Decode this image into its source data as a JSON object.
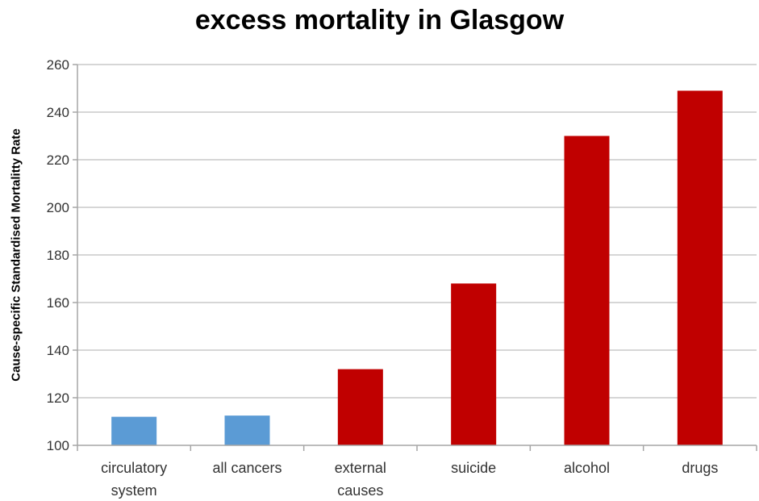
{
  "chart_data": {
    "type": "bar",
    "title": "excess mortality in Glasgow",
    "xlabel": "",
    "ylabel": "Cause-specific Standardised Mortalitty Rate",
    "ylim": [
      100,
      260
    ],
    "yticks": [
      100,
      120,
      140,
      160,
      180,
      200,
      220,
      240,
      260
    ],
    "grid": true,
    "categories": [
      [
        "circulatory",
        "system"
      ],
      [
        "all cancers"
      ],
      [
        "external",
        "causes"
      ],
      [
        "suicide"
      ],
      [
        "alcohol"
      ],
      [
        "drugs"
      ]
    ],
    "values": [
      112,
      112.5,
      132,
      168,
      230,
      249
    ],
    "colors": [
      "#5b9bd5",
      "#5b9bd5",
      "#c00000",
      "#c00000",
      "#c00000",
      "#c00000"
    ]
  }
}
